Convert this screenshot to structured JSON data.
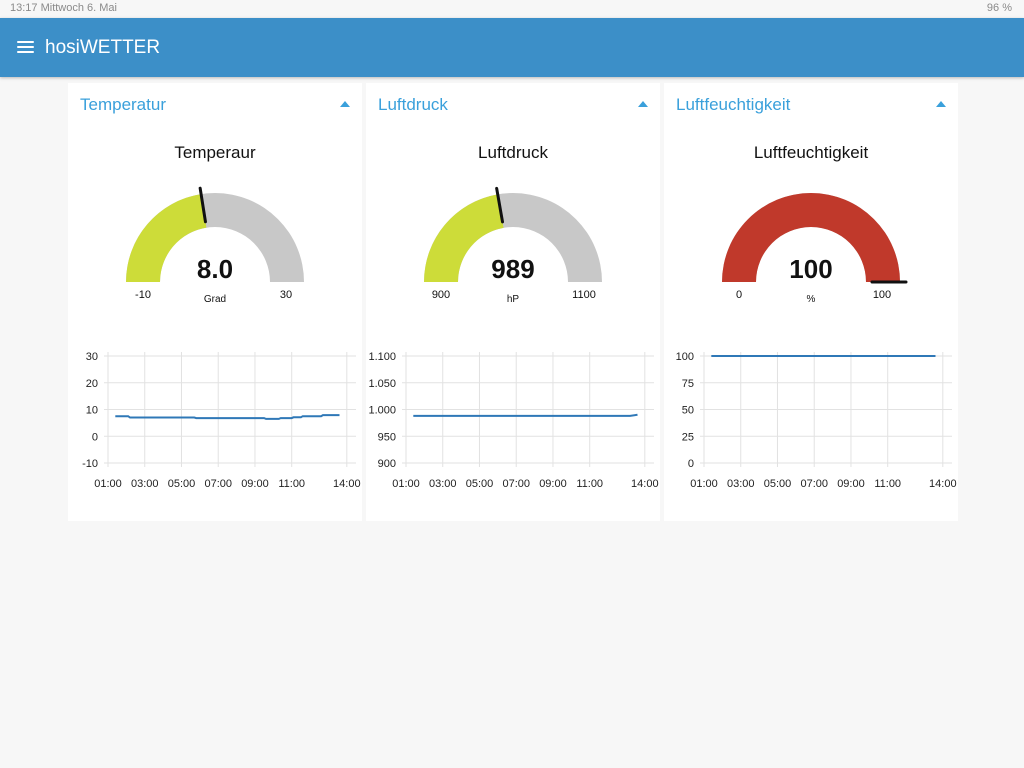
{
  "statusbar": {
    "left": "13:17  Mittwoch 6. Mai",
    "right": "96 %"
  },
  "app": {
    "title": "hosiWETTER"
  },
  "accent_color": "#3c8fc8",
  "line_color": "#2f78b7",
  "chart_data": [
    {
      "type": "gauge",
      "group": "Temperatur",
      "label": "Temperaur",
      "value_text": "8.0",
      "value": 8.0,
      "units": "Grad",
      "min": -10,
      "max": 30,
      "min_label": "-10",
      "max_label": "30",
      "color": "#cddc39"
    },
    {
      "type": "gauge",
      "group": "Luftdruck",
      "label": "Luftdruck",
      "value_text": "989",
      "value": 989,
      "units": "hP",
      "min": 900,
      "max": 1100,
      "min_label": "900",
      "max_label": "1100",
      "color": "#cddc39"
    },
    {
      "type": "gauge",
      "group": "Luftfeuchtigkeit",
      "label": "Luftfeuchtigkeit",
      "value_text": "100",
      "value": 100,
      "units": "%",
      "min": 0,
      "max": 100,
      "min_label": "0",
      "max_label": "100",
      "color": "#c0392b"
    },
    {
      "type": "line",
      "group": "Temperatur",
      "x_ticks": [
        "01:00",
        "03:00",
        "05:00",
        "07:00",
        "09:00",
        "11:00",
        "14:00"
      ],
      "x_tick_hours": [
        1,
        3,
        5,
        7,
        9,
        11,
        14
      ],
      "xlim": [
        1,
        14.5
      ],
      "ylim": [
        -10,
        30
      ],
      "y_ticks": [
        30,
        20,
        10,
        0,
        -10
      ],
      "y_tick_labels": [
        "30",
        "20",
        "10",
        "0",
        "-10"
      ],
      "x": [
        1.4,
        2.1,
        2.2,
        5.7,
        5.8,
        9.5,
        9.6,
        10.3,
        10.4,
        11.0,
        11.1,
        11.5,
        11.6,
        12.6,
        12.7,
        13.6
      ],
      "y": [
        7.5,
        7.5,
        7.0,
        7.0,
        6.8,
        6.8,
        6.5,
        6.5,
        6.8,
        6.8,
        7.1,
        7.1,
        7.5,
        7.5,
        7.9,
        7.9
      ]
    },
    {
      "type": "line",
      "group": "Luftdruck",
      "x_ticks": [
        "01:00",
        "03:00",
        "05:00",
        "07:00",
        "09:00",
        "11:00",
        "14:00"
      ],
      "x_tick_hours": [
        1,
        3,
        5,
        7,
        9,
        11,
        14
      ],
      "xlim": [
        1,
        14.5
      ],
      "ylim": [
        900,
        1100
      ],
      "y_ticks": [
        1100,
        1050,
        1000,
        950,
        900
      ],
      "y_tick_labels": [
        "1.100",
        "1.050",
        "1.000",
        "950",
        "900"
      ],
      "x": [
        1.4,
        13.2,
        13.6
      ],
      "y": [
        988,
        988,
        990
      ]
    },
    {
      "type": "line",
      "group": "Luftfeuchtigkeit",
      "x_ticks": [
        "01:00",
        "03:00",
        "05:00",
        "07:00",
        "09:00",
        "11:00",
        "14:00"
      ],
      "x_tick_hours": [
        1,
        3,
        5,
        7,
        9,
        11,
        14
      ],
      "xlim": [
        1,
        14.5
      ],
      "ylim": [
        0,
        100
      ],
      "y_ticks": [
        100,
        75,
        50,
        25,
        0
      ],
      "y_tick_labels": [
        "100",
        "75",
        "50",
        "25",
        "0"
      ],
      "x": [
        1.4,
        13.6
      ],
      "y": [
        100,
        100
      ]
    }
  ]
}
